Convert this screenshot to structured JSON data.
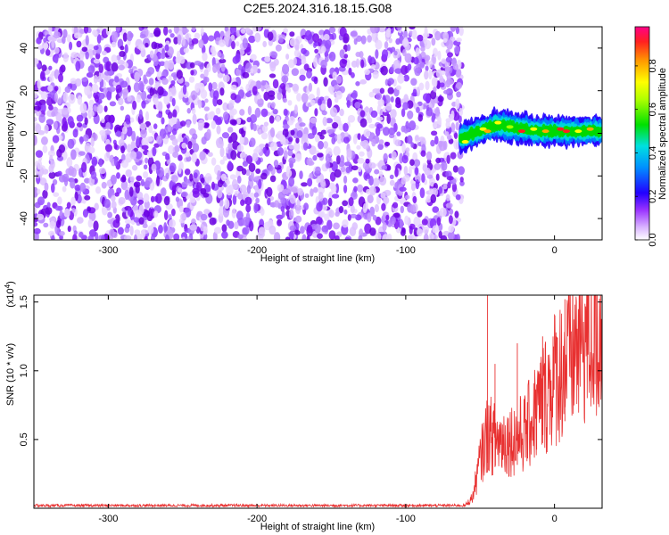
{
  "title": "C2E5.2024.316.18.15.G08",
  "chart_data": [
    {
      "type": "heatmap",
      "xlabel": "Height of straight line (km)",
      "ylabel": "Frequency (Hz)",
      "xlim": [
        -350,
        32
      ],
      "ylim": [
        -50,
        50
      ],
      "xticks": [
        -300,
        -200,
        -100,
        0
      ],
      "yticks": [
        40,
        20,
        0,
        -20,
        -40
      ],
      "colorbar": {
        "label": "Normalized spectral amplitude",
        "range": [
          0,
          0.98
        ],
        "ticks": [
          0.0,
          0.2,
          0.4,
          0.6,
          0.8
        ],
        "colors": [
          "#f2e6ff",
          "#c9a6ff",
          "#8800ff",
          "#2a00ff",
          "#0080ff",
          "#00e0e0",
          "#00e000",
          "#a0ff00",
          "#ffff00",
          "#ffaa00",
          "#ff2020",
          "#ff0080"
        ]
      },
      "description_values": {
        "noise_region_x": [
          -350,
          -65
        ],
        "signal_region_x": [
          -65,
          32
        ],
        "signal_frequency_center_hz": [
          [
            -65,
            -3
          ],
          [
            -55,
            0
          ],
          [
            -40,
            4
          ],
          [
            -30,
            3
          ],
          [
            -20,
            2
          ],
          [
            -10,
            1
          ],
          [
            0,
            1
          ],
          [
            30,
            1
          ]
        ]
      }
    },
    {
      "type": "line",
      "xlabel": "Height of straight line (km)",
      "ylabel": "SNR (10 * v/v)",
      "yscale_label": "(x10",
      "yscale_exp": "4",
      "yscale_close": ")",
      "xlim": [
        -350,
        32
      ],
      "ylim": [
        0,
        1.55
      ],
      "xticks": [
        -300,
        -200,
        -100,
        0
      ],
      "yticks": [
        1.5,
        1.0,
        0.5
      ],
      "series": [
        {
          "color": "#e83030",
          "trend": [
            [
              -350,
              0.02
            ],
            [
              -60,
              0.02
            ],
            [
              -55,
              0.08
            ],
            [
              -50,
              0.35
            ],
            [
              -45,
              0.55
            ],
            [
              -40,
              0.5
            ],
            [
              -30,
              0.5
            ],
            [
              -20,
              0.55
            ],
            [
              -10,
              0.75
            ],
            [
              0,
              0.95
            ],
            [
              10,
              1.1
            ],
            [
              20,
              1.25
            ],
            [
              32,
              1.3
            ]
          ],
          "peaks": [
            [
              -45,
              1.55
            ],
            [
              -40,
              1.05
            ],
            [
              -25,
              1.2
            ],
            [
              7,
              1.52
            ],
            [
              -8,
              1.25
            ],
            [
              -12,
              0.9
            ]
          ]
        }
      ]
    }
  ]
}
